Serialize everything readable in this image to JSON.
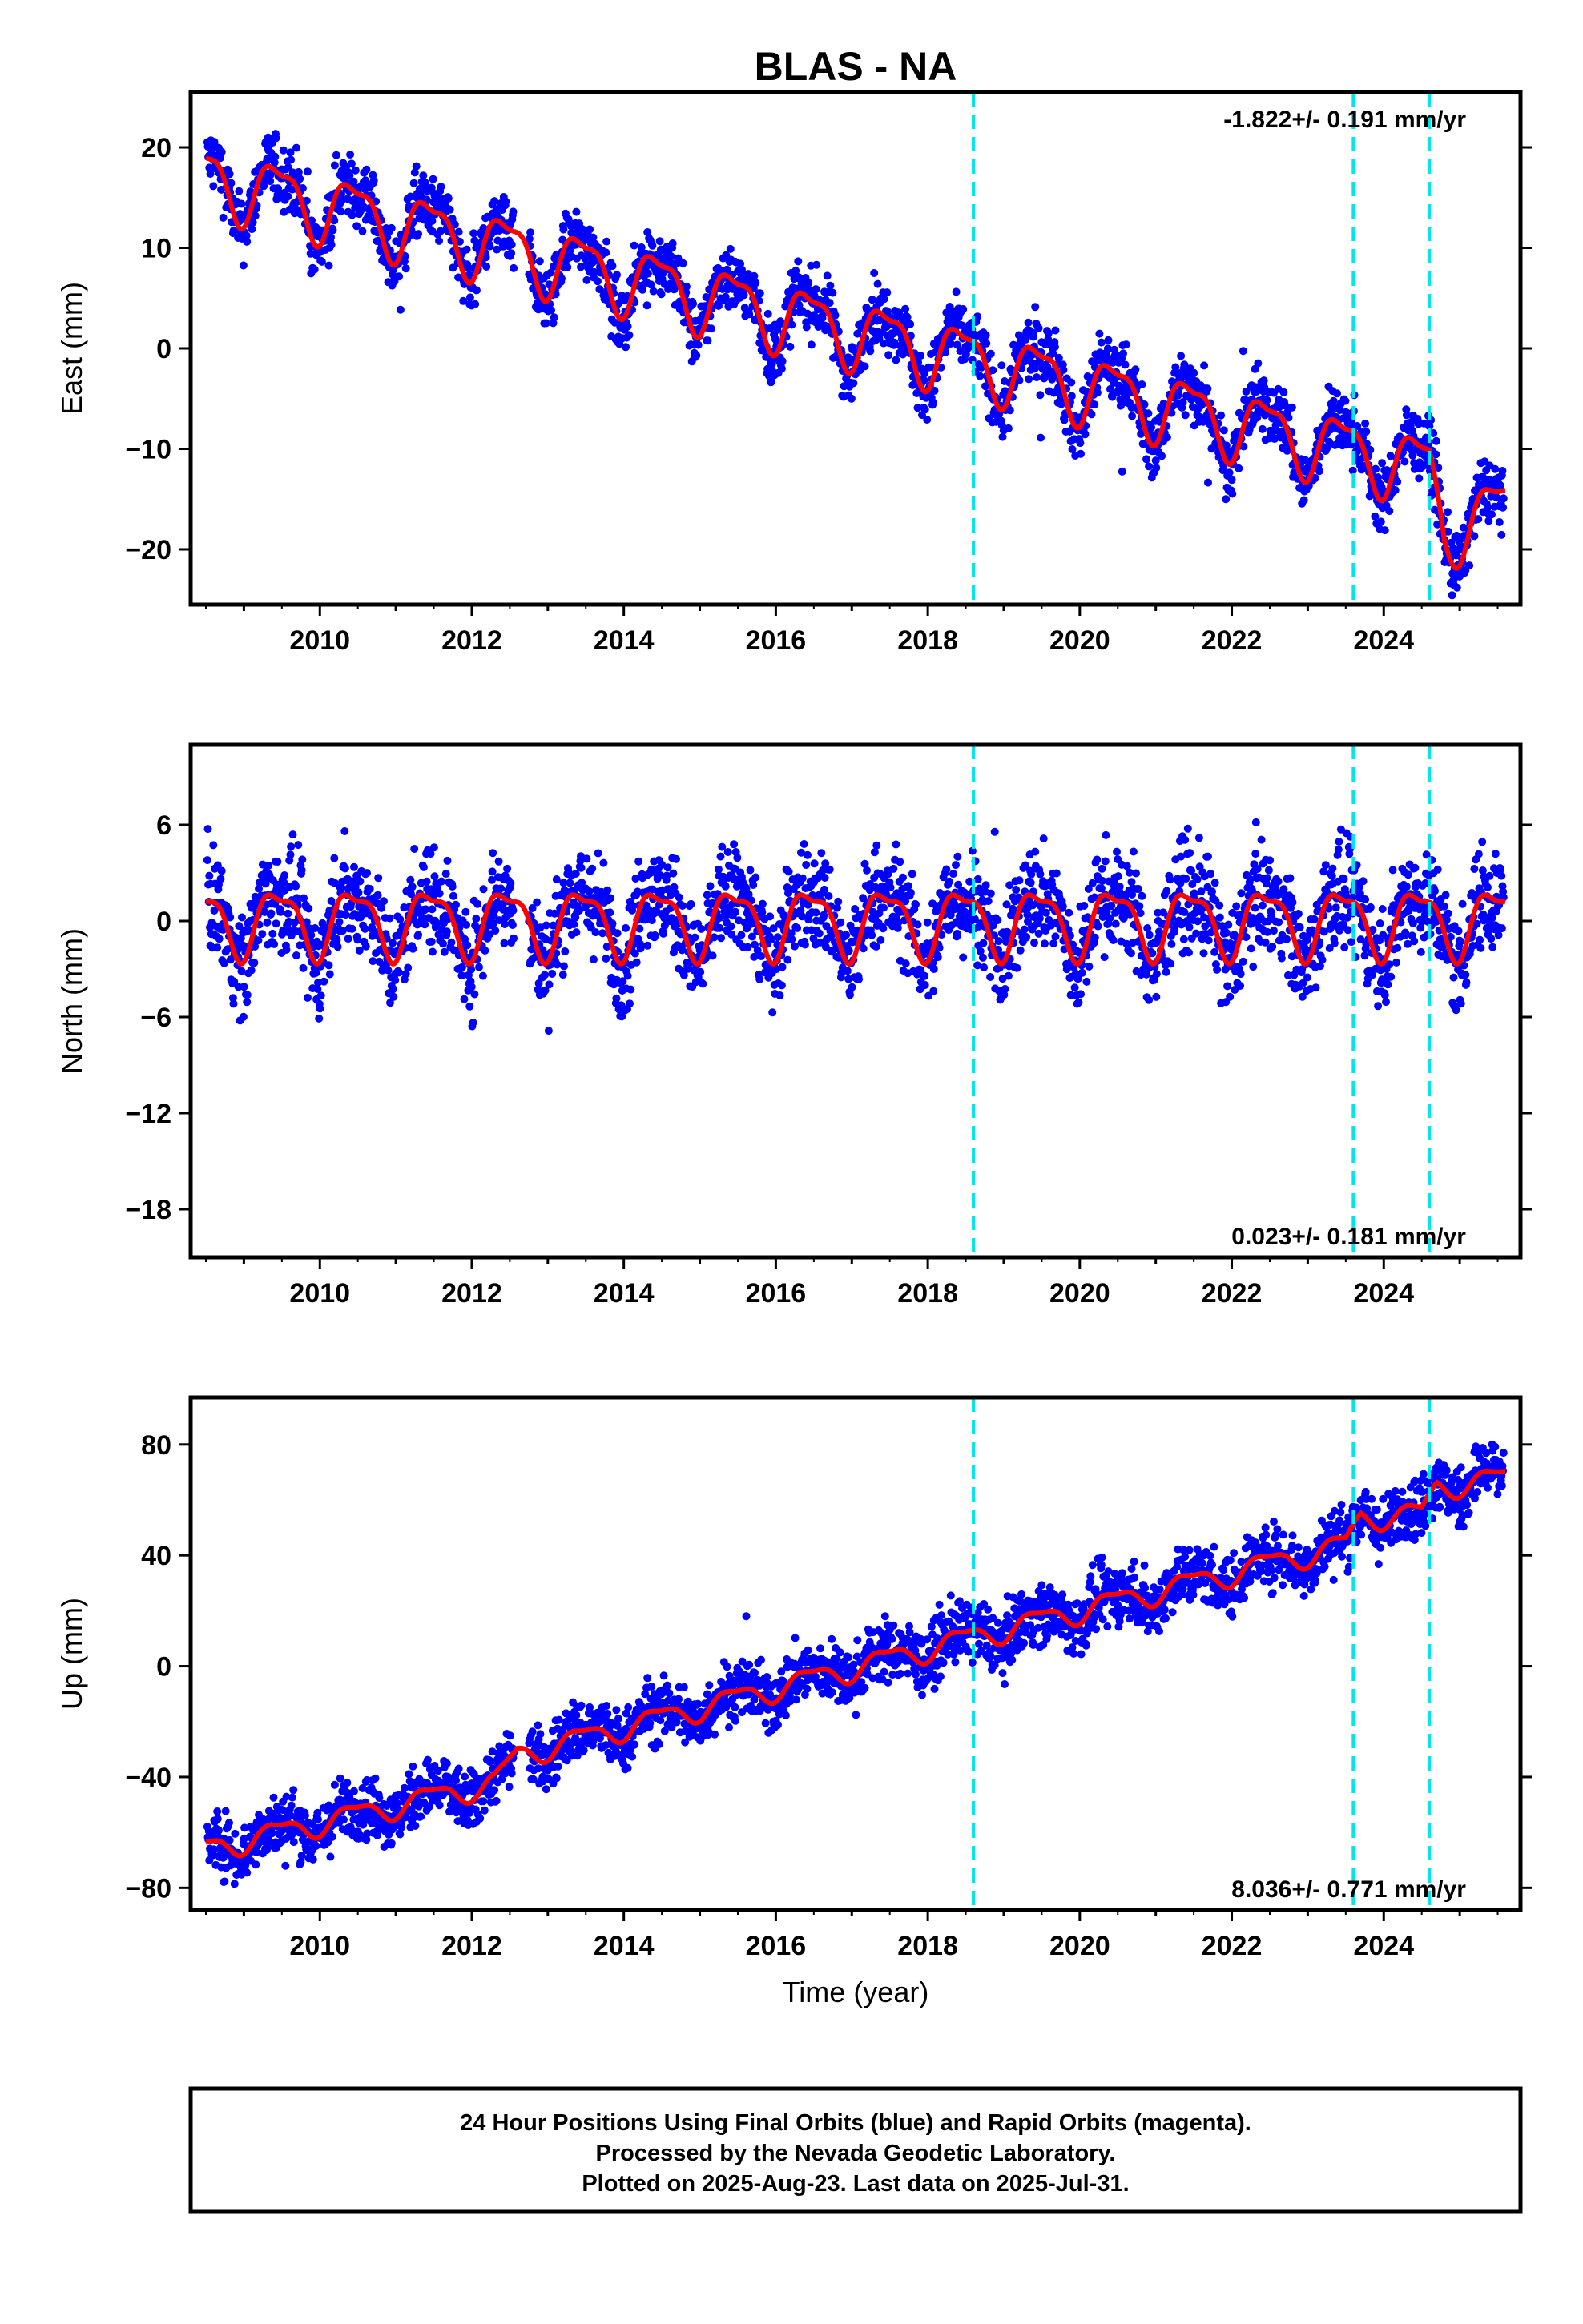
{
  "chart_data": {
    "type": "scatter",
    "title": "BLAS - NA",
    "xlabel": "Time (year)",
    "xlim": [
      2008.3,
      2025.8
    ],
    "x_ticks": [
      2010,
      2012,
      2014,
      2016,
      2018,
      2020,
      2022,
      2024
    ],
    "x_tick_labels": [
      "2010",
      "2012",
      "2014",
      "2016",
      "2018",
      "2020",
      "2022",
      "2024"
    ],
    "event_lines": [
      2018.6,
      2023.6,
      2024.6
    ],
    "colors": {
      "points": "#0000ff",
      "model": "#ff0000",
      "events": "#00e5ee",
      "frame": "#000000"
    },
    "panels": [
      {
        "name": "East",
        "ylabel": "East (mm)",
        "ylim": [
          -25.5,
          25.5
        ],
        "y_ticks": [
          -20,
          -10,
          0,
          10,
          20
        ],
        "y_tick_labels": [
          "−20",
          "−10",
          "0",
          "10",
          "20"
        ],
        "rate_label": "-1.822+/- 0.191 mm/yr",
        "rate_position": "top-right",
        "trend_points": [
          [
            2008.5,
            17
          ],
          [
            2018.5,
            -1
          ],
          [
            2024.6,
            -12
          ],
          [
            2024.8,
            -18
          ],
          [
            2025.6,
            -16
          ]
        ],
        "seasonal_amplitude": 3.2,
        "scatter": 1.6
      },
      {
        "name": "North",
        "ylabel": "North (mm)",
        "ylim": [
          -21,
          11
        ],
        "y_ticks": [
          -18,
          -12,
          -6,
          0,
          6
        ],
        "y_tick_labels": [
          "−18",
          "−12",
          "−6",
          "0",
          "6"
        ],
        "rate_label": "0.023+/- 0.181 mm/yr",
        "rate_position": "bottom-right",
        "trend_points": [
          [
            2008.5,
            0
          ],
          [
            2025.6,
            0
          ]
        ],
        "seasonal_amplitude": 2.0,
        "scatter": 1.6
      },
      {
        "name": "Up",
        "ylabel": "Up (mm)",
        "ylim": [
          -88,
          97
        ],
        "y_ticks": [
          -80,
          -40,
          0,
          40,
          80
        ],
        "y_tick_labels": [
          "−80",
          "−40",
          "0",
          "40",
          "80"
        ],
        "rate_label": "8.036+/- 0.771 mm/yr",
        "rate_position": "bottom-right",
        "trend_points": [
          [
            2008.5,
            -66
          ],
          [
            2012.3,
            -42
          ],
          [
            2012.6,
            -32
          ],
          [
            2018.5,
            10
          ],
          [
            2023.5,
            44
          ],
          [
            2023.7,
            54
          ],
          [
            2024.5,
            55
          ],
          [
            2024.7,
            65
          ],
          [
            2025.6,
            68
          ]
        ],
        "seasonal_amplitude": 4.0,
        "scatter": 5.5
      }
    ]
  },
  "footer": {
    "lines": [
      "24 Hour Positions Using Final Orbits (blue) and Rapid Orbits (magenta).",
      "Processed by the Nevada Geodetic Laboratory.",
      "Plotted on 2025-Aug-23. Last data on 2025-Jul-31."
    ]
  }
}
